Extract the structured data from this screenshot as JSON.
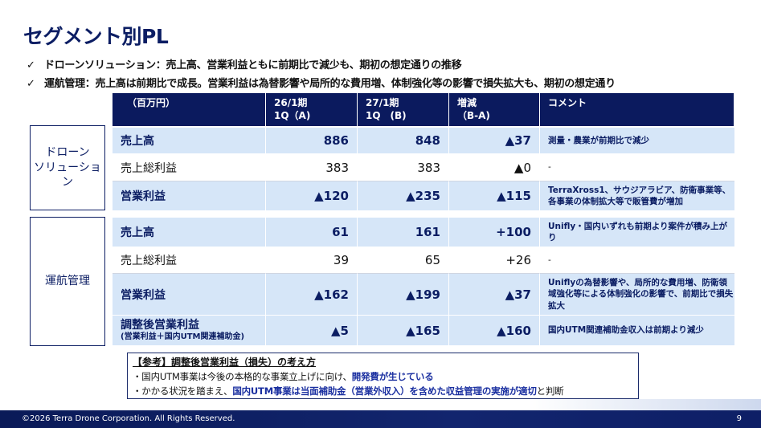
{
  "title": "セグメント別PL",
  "bullets": [
    {
      "check": "✓",
      "text": "ドローンソリューション：売上高、営業利益ともに前期比で減少も、期初の想定通りの推移"
    },
    {
      "check": "✓",
      "text": "運航管理：売上高は前期比で成長。営業利益は為替影響や局所的な費用増、体制強化等の影響で損失拡大も、期初の想定通り"
    }
  ],
  "segments": [
    {
      "label_line1": "ドローン",
      "label_line2": "ソリューション"
    },
    {
      "label_line1": "運航管理",
      "label_line2": ""
    }
  ],
  "table": {
    "headers": {
      "unit": "（百万円）",
      "col1_line1": "26/1期",
      "col1_line2": "1Q（A)",
      "col2_line1": "27/1期",
      "col2_line2": "1Q　(B)",
      "col3_line1": "増減",
      "col3_line2": "（B-A)",
      "col4": "コメント"
    },
    "drone": [
      {
        "item": "売上高",
        "sub": "",
        "a": "886",
        "b": "848",
        "diff": "▲37",
        "comment": "測量・農業が前期比で減少"
      },
      {
        "item": "売上総利益",
        "sub": "",
        "a": "383",
        "b": "383",
        "diff": "▲0",
        "comment": "-"
      },
      {
        "item": "営業利益",
        "sub": "",
        "a": "▲120",
        "b": "▲235",
        "diff": "▲115",
        "comment": "TerraXross1、サウジアラビア、防衛事業等、各事業の体制拡大等で販管費が増加"
      }
    ],
    "utm": [
      {
        "item": "売上高",
        "sub": "",
        "a": "61",
        "b": "161",
        "diff": "+100",
        "comment": "Unifly・国内いずれも前期より案件が積み上がり"
      },
      {
        "item": "売上総利益",
        "sub": "",
        "a": "39",
        "b": "65",
        "diff": "+26",
        "comment": "-"
      },
      {
        "item": "営業利益",
        "sub": "",
        "a": "▲162",
        "b": "▲199",
        "diff": "▲37",
        "comment": "Uniflyの為替影響や、局所的な費用増、防衛領域強化等による体制強化の影響で、前期比で損失拡大"
      },
      {
        "item": "調整後営業利益",
        "sub": "(営業利益＋国内UTM関連補助金)",
        "a": "▲5",
        "b": "▲165",
        "diff": "▲160",
        "comment": "国内UTM関連補助金収入は前期より減少"
      }
    ]
  },
  "note": {
    "title": "【参考】調整後営業利益（損失）の考え方",
    "line1_pre": "・国内UTM事業は今後の本格的な事業立上げに向け、",
    "line1_hl": "開発費が生じている",
    "line2_pre": "・かかる状況を踏まえ、",
    "line2_hl": "国内UTM事業は当面補助金（営業外収入）を含めた収益管理の実施が適切",
    "line2_post": "と判断"
  },
  "footer": {
    "copyright": "©2026 Terra Drone Corporation. All Rights Reserved.",
    "page": "9"
  },
  "colors": {
    "navy": "#0b1a5e",
    "light_blue_row": "#d6e6f8",
    "highlight_text": "#1a2fa0"
  }
}
